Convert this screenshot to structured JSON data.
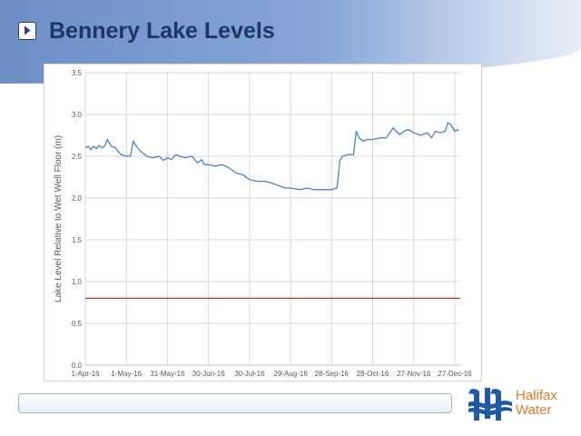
{
  "slide": {
    "title": "Bennery Lake Levels"
  },
  "logo": {
    "line1": "Halifax",
    "line2": "Water"
  },
  "colors": {
    "series_line": "#4f7fc0",
    "threshold_line": "#c0392b",
    "title_text": "#1f3564",
    "logo_text": "#e07a2a",
    "logo_mark": "#1f5aa6"
  },
  "icons": {
    "nav": "play-arrow-icon",
    "logo": "halifax-water-logo-icon"
  },
  "chart_data": {
    "type": "line",
    "title": "",
    "xlabel": "",
    "ylabel": "Lake Level Relative to Wet Well Floor (m)",
    "ylim": [
      0,
      3.5
    ],
    "y_ticks": [
      "0.0",
      "0.5",
      "1.0",
      "1.5",
      "2.0",
      "2.5",
      "3.0",
      "3.5"
    ],
    "x_ticks": [
      "1-Apr-16",
      "1-May-16",
      "31-May-16",
      "30-Jun-16",
      "30-Jul-16",
      "29-Aug-16",
      "28-Sep-16",
      "28-Oct-16",
      "27-Nov-16",
      "27-Dec-16"
    ],
    "x_range": [
      "2016-04-01",
      "2016-12-31"
    ],
    "grid": "vertical and horizontal",
    "legend": "none",
    "series": [
      {
        "x": [
          "2016-04-01",
          "2016-04-03",
          "2016-04-05",
          "2016-04-07",
          "2016-04-09",
          "2016-04-11",
          "2016-04-13",
          "2016-04-15",
          "2016-04-17",
          "2016-04-20",
          "2016-04-23",
          "2016-04-27",
          "2016-05-01",
          "2016-05-04",
          "2016-05-06",
          "2016-05-09",
          "2016-05-12",
          "2016-05-16",
          "2016-05-20",
          "2016-05-25",
          "2016-05-28",
          "2016-05-31",
          "2016-06-03",
          "2016-06-06",
          "2016-06-09",
          "2016-06-13",
          "2016-06-18",
          "2016-06-22",
          "2016-06-25",
          "2016-06-27",
          "2016-06-30",
          "2016-07-05",
          "2016-07-10",
          "2016-07-15",
          "2016-07-20",
          "2016-07-25",
          "2016-07-30",
          "2016-08-05",
          "2016-08-10",
          "2016-08-15",
          "2016-08-20",
          "2016-08-25",
          "2016-08-29",
          "2016-09-05",
          "2016-09-10",
          "2016-09-15",
          "2016-09-20",
          "2016-09-25",
          "2016-09-28",
          "2016-10-02",
          "2016-10-04",
          "2016-10-06",
          "2016-10-10",
          "2016-10-14",
          "2016-10-16",
          "2016-10-18",
          "2016-10-21",
          "2016-10-24",
          "2016-10-28",
          "2016-11-02",
          "2016-11-07",
          "2016-11-12",
          "2016-11-15",
          "2016-11-17",
          "2016-11-20",
          "2016-11-23",
          "2016-11-27",
          "2016-12-02",
          "2016-12-07",
          "2016-12-10",
          "2016-12-13",
          "2016-12-16",
          "2016-12-20",
          "2016-12-22",
          "2016-12-24",
          "2016-12-27",
          "2016-12-30"
        ],
        "values": [
          2.6,
          2.62,
          2.58,
          2.62,
          2.59,
          2.63,
          2.6,
          2.62,
          2.7,
          2.62,
          2.6,
          2.52,
          2.5,
          2.5,
          2.68,
          2.6,
          2.55,
          2.5,
          2.48,
          2.5,
          2.45,
          2.48,
          2.46,
          2.52,
          2.5,
          2.48,
          2.5,
          2.42,
          2.46,
          2.4,
          2.4,
          2.38,
          2.4,
          2.36,
          2.3,
          2.28,
          2.22,
          2.2,
          2.2,
          2.18,
          2.15,
          2.12,
          2.12,
          2.1,
          2.12,
          2.1,
          2.1,
          2.1,
          2.1,
          2.12,
          2.45,
          2.5,
          2.52,
          2.52,
          2.8,
          2.72,
          2.68,
          2.7,
          2.7,
          2.72,
          2.72,
          2.84,
          2.78,
          2.76,
          2.8,
          2.82,
          2.78,
          2.75,
          2.78,
          2.72,
          2.8,
          2.78,
          2.8,
          2.9,
          2.88,
          2.8,
          2.82
        ]
      },
      {
        "x": [
          "2016-04-01",
          "2016-12-31"
        ],
        "values": [
          0.8,
          0.8
        ]
      }
    ]
  }
}
